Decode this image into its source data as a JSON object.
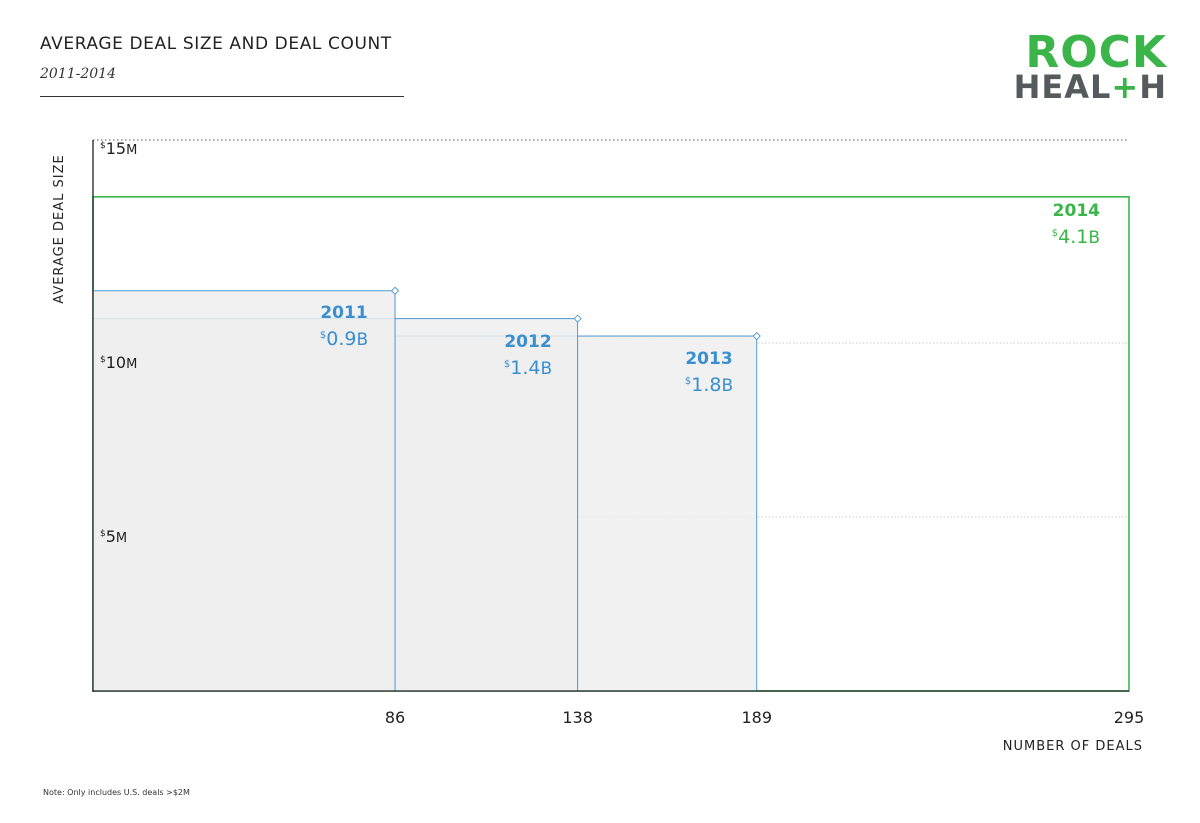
{
  "header": {
    "title": "AVERAGE DEAL SIZE AND DEAL COUNT",
    "subtitle": "2011-2014"
  },
  "logo": {
    "line1": "ROCK",
    "line2_prefix": "HEAL",
    "line2_plus": "+",
    "line2_suffix": "H"
  },
  "note": "Note: Only includes U.S. deals >$2M",
  "colors": {
    "blue": "#3a8fd0",
    "green": "#3bb54a",
    "fill": "#eeeeef",
    "axis": "#222222",
    "grid": "#bbbbbb"
  },
  "chart_data": {
    "type": "area",
    "title": "AVERAGE DEAL SIZE AND DEAL COUNT",
    "subtitle": "2011-2014",
    "xlabel": "NUMBER OF DEALS",
    "ylabel": "AVERAGE DEAL SIZE",
    "xlim": [
      0,
      295
    ],
    "ylim": [
      0,
      16
    ],
    "x_ticks": [
      86,
      138,
      189,
      295
    ],
    "y_ticks": [
      {
        "value": 5,
        "prefix": "$",
        "label": "5",
        "suffix": "M"
      },
      {
        "value": 10,
        "prefix": "$",
        "label": "10",
        "suffix": "M"
      },
      {
        "value": 15,
        "prefix": "$",
        "label": "15",
        "suffix": "M"
      }
    ],
    "series": [
      {
        "name": "2011",
        "deals": 86,
        "avg_deal_size": 11.5,
        "total_prefix": "$",
        "total_value": "0.9",
        "total_unit": "B",
        "color": "#3a8fd0"
      },
      {
        "name": "2012",
        "deals": 138,
        "avg_deal_size": 10.7,
        "total_prefix": "$",
        "total_value": "1.4",
        "total_unit": "B",
        "color": "#3a8fd0"
      },
      {
        "name": "2013",
        "deals": 189,
        "avg_deal_size": 10.2,
        "total_prefix": "$",
        "total_value": "1.8",
        "total_unit": "B",
        "color": "#3a8fd0"
      },
      {
        "name": "2014",
        "deals": 295,
        "avg_deal_size": 14.2,
        "total_prefix": "$",
        "total_value": "4.1",
        "total_unit": "B",
        "color": "#3bb54a"
      }
    ],
    "grid": true
  }
}
